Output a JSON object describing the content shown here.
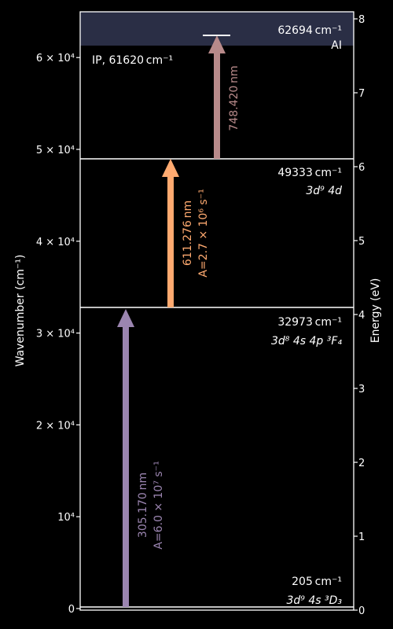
{
  "axes": {
    "left_label": "Wavenumber (cm⁻¹)",
    "right_label": "Energy (eV)",
    "left_ticks": [
      {
        "value": 0,
        "text": "0"
      },
      {
        "value": 10000,
        "text": "10⁴"
      },
      {
        "value": 20000,
        "text": "2 × 10⁴"
      },
      {
        "value": 30000,
        "text": "3 × 10⁴"
      },
      {
        "value": 40000,
        "text": "4 × 10⁴"
      },
      {
        "value": 50000,
        "text": "5 × 10⁴"
      },
      {
        "value": 60000,
        "text": "6 × 10⁴"
      }
    ],
    "right_ticks": [
      0,
      1,
      2,
      3,
      4,
      5,
      6,
      7,
      8
    ],
    "ylim_wavenumber": [
      -200,
      65500
    ],
    "ylim_ev": [
      0,
      8.12
    ]
  },
  "ionization": {
    "label": "IP, 61620 cm⁻¹",
    "value": 61620,
    "band_color": "#2a2e45"
  },
  "levels": [
    {
      "value": 205,
      "energy_text": "205 cm⁻¹",
      "config": "3d⁹ 4s ³D₃"
    },
    {
      "value": 32973,
      "energy_text": "32973 cm⁻¹",
      "config": "3d⁸ 4s 4p ³F₄"
    },
    {
      "value": 49333,
      "energy_text": "49333 cm⁻¹",
      "config": "3d⁹ 4d"
    },
    {
      "value": 62694,
      "energy_text": "62694 cm⁻¹",
      "config": "AI"
    }
  ],
  "transitions": [
    {
      "from": 205,
      "to": 32973,
      "wavelength": "305.170 nm",
      "rate": "A=6.0 × 10⁷ s⁻¹",
      "color": "#9b85b0"
    },
    {
      "from": 32973,
      "to": 49333,
      "wavelength": "611.276 nm",
      "rate": "A=2.7 × 10⁶ s⁻¹",
      "color": "#ffaa70"
    },
    {
      "from": 49333,
      "to": 62694,
      "wavelength": "748.420 nm",
      "rate": "",
      "color": "#b88a8a"
    }
  ]
}
